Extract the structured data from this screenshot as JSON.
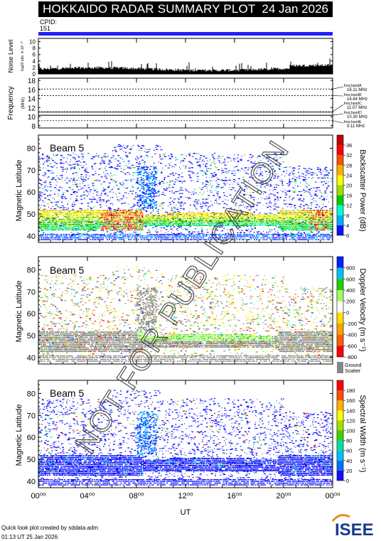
{
  "header": {
    "title": "HOKKAIDO RADAR SUMMARY PLOT",
    "date": "24 Jan 2026"
  },
  "cpid": {
    "label": "CPID:",
    "value": "151"
  },
  "noise_panel": {
    "ylabel": "Noise Level",
    "ylabel_sub": "log10 abs. in 10⁻¹⁰",
    "ticks": [
      "0",
      "2",
      "4",
      "6",
      "8",
      "10"
    ]
  },
  "frequency_panel": {
    "ylabel": "Frequency",
    "unit": "(MHz)",
    "ticks": [
      "8",
      "10",
      "12",
      "14",
      "16",
      "18"
    ],
    "bands": [
      {
        "name": "freq bandA",
        "value": "16.11 MHz"
      },
      {
        "name": "freq bandB",
        "value": "14.64 MHz"
      },
      {
        "name": "freq bandC",
        "value": "11.07 MHz"
      },
      {
        "name": "freq bandD",
        "value": "10.30 MHz"
      },
      {
        "name": "freq bandE",
        "value": "9.11 MHz"
      }
    ]
  },
  "panels": [
    {
      "beam": "Beam 5",
      "ylabel": "Magnetic Latitude",
      "colorbar_label": "Backscatter Power (dB)",
      "colorbar_ticks": [
        "0",
        "4",
        "8",
        "12",
        "16",
        "20",
        "24",
        "28",
        "32",
        "36"
      ],
      "colors": [
        "#1010ff",
        "#00b0ff",
        "#00ffd0",
        "#00d000",
        "#a0e000",
        "#ffff00",
        "#ffb000",
        "#ff5000",
        "#ff0000",
        "#c00000"
      ]
    },
    {
      "beam": "Beam 5",
      "ylabel": "Magnetic Latitude",
      "colorbar_label": "Doppler Velocity (m s⁻¹)",
      "colorbar_ticks": [
        "-800",
        "-600",
        "-400",
        "-200",
        "0",
        "200",
        "400",
        "600",
        "800"
      ],
      "colors": [
        "#ff0000",
        "#ff6000",
        "#ffa000",
        "#ffe000",
        "#ffffff",
        "#a0ff60",
        "#20d000",
        "#00c0ff",
        "#0020ff"
      ],
      "ground_label": "Ground",
      "ground_label2": "Scatter"
    },
    {
      "beam": "Beam 5",
      "ylabel": "Magnetic Latitude",
      "colorbar_label": "Spectral Width (m s⁻¹)",
      "colorbar_ticks": [
        "0",
        "20",
        "40",
        "60",
        "80",
        "100",
        "120",
        "140",
        "160",
        "180"
      ],
      "colors": [
        "#1010ff",
        "#0070ff",
        "#00c0ff",
        "#00e0a0",
        "#40d000",
        "#a0e000",
        "#ffff00",
        "#ffb000",
        "#ff5000",
        "#ff0000"
      ]
    }
  ],
  "chart_data": {
    "type": "heatmap",
    "x_label": "UT",
    "x_ticks": [
      "00⁰⁰",
      "04⁰⁰",
      "08⁰⁰",
      "12⁰⁰",
      "16⁰⁰",
      "20⁰⁰",
      "00⁰⁰"
    ],
    "x_range_hours": [
      0,
      24
    ],
    "lat_ticks": [
      "40",
      "50",
      "60",
      "70",
      "80"
    ],
    "lat_range": [
      37,
      86
    ],
    "noise_range": [
      0,
      11
    ],
    "frequency_range": [
      7.5,
      18.5
    ],
    "frequency_dashed_lines_mhz": [
      16.11,
      14.64,
      11.07,
      10.3,
      9.11
    ]
  },
  "watermark": "NOT FOR PUBLICATION",
  "footer": {
    "credit": "Quick look plot created by sddata.adm",
    "timestamp": "01:13 UT 25 Jan 2026",
    "logo": "ISEE"
  }
}
